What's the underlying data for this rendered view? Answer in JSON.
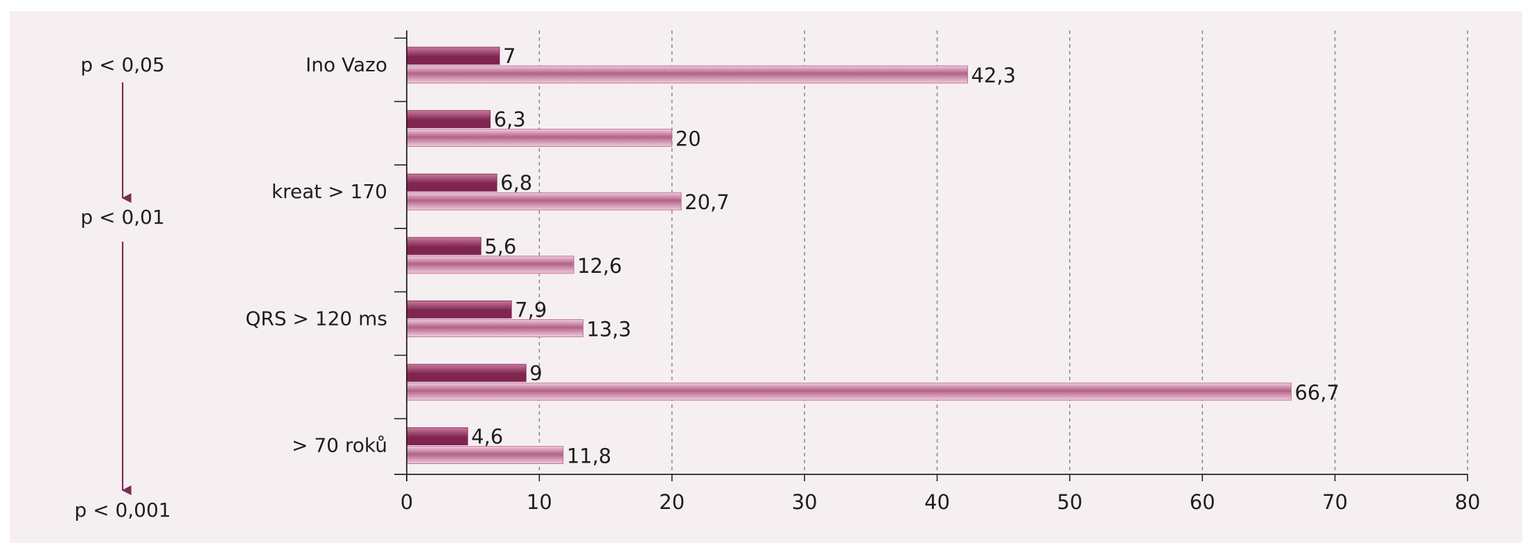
{
  "chart_data": {
    "type": "bar",
    "orientation": "horizontal",
    "title": "",
    "xlabel": "",
    "ylabel": "",
    "xlim": [
      0,
      80
    ],
    "x_ticks": [
      "0",
      "10",
      "20",
      "30",
      "40",
      "50",
      "60",
      "70",
      "80"
    ],
    "grid": "vertical-dashed",
    "legend": "none",
    "categories": [
      "Ino Vazo",
      "",
      "kreat > 170",
      "",
      "QRS > 120 ms",
      "",
      "> 70 roků"
    ],
    "series": [
      {
        "values": [
          7,
          6.3,
          6.8,
          5.6,
          7.9,
          9,
          4.6
        ],
        "labels": [
          "7",
          "6,3",
          "6,8",
          "5,6",
          "7,9",
          "9",
          "4,6"
        ]
      },
      {
        "values": [
          42.3,
          20,
          20.7,
          12.6,
          13.3,
          66.7,
          11.8
        ],
        "labels": [
          "42,3",
          "20",
          "20,7",
          "12,6",
          "13,3",
          "66,7",
          "11,8"
        ]
      }
    ],
    "colors": {
      "series1_dark": "#7f2550",
      "series1_light": "#c97a9c",
      "series2_dark": "#b26287",
      "series2_light": "#f0ccdb",
      "grid": "#8a8a8a",
      "axis": "#222222",
      "arrow": "#7a2d56"
    },
    "significance": {
      "labels": [
        "p < 0,05",
        "p < 0,01",
        "p < 0,001"
      ]
    }
  }
}
